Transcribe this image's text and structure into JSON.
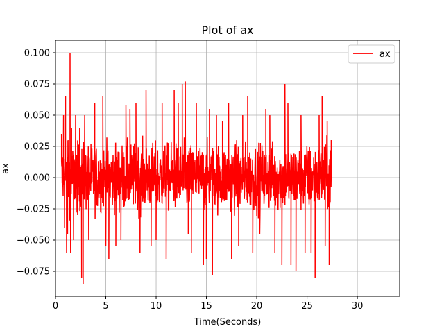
{
  "chart_data": {
    "type": "line",
    "title": "Plot of ax",
    "xlabel": "Time(Seconds)",
    "ylabel": "ax",
    "xlim": [
      0,
      34.2
    ],
    "ylim": [
      -0.095,
      0.11
    ],
    "xticks": [
      0,
      5,
      10,
      15,
      20,
      25,
      30
    ],
    "xtick_labels": [
      "0",
      "5",
      "10",
      "15",
      "20",
      "25",
      "30"
    ],
    "yticks": [
      -0.075,
      -0.05,
      -0.025,
      0.0,
      0.025,
      0.05,
      0.075,
      0.1
    ],
    "ytick_labels": [
      "−0.075",
      "−0.050",
      "−0.025",
      "0.000",
      "0.025",
      "0.050",
      "0.075",
      "0.100"
    ],
    "grid": true,
    "legend_position": "top-right",
    "series": [
      {
        "name": "ax",
        "color": "#ff0000",
        "x_start": 0.6,
        "x_end": 27.4,
        "mean": 0.0,
        "typical_range": [
          -0.05,
          0.05
        ],
        "points": [
          [
            0.6,
            0.035
          ],
          [
            0.7,
            -0.005
          ],
          [
            0.8,
            0.05
          ],
          [
            0.9,
            -0.04
          ],
          [
            1.0,
            0.065
          ],
          [
            1.1,
            -0.06
          ],
          [
            1.2,
            -0.045
          ],
          [
            1.3,
            0.03
          ],
          [
            1.45,
            0.1
          ],
          [
            1.5,
            -0.06
          ],
          [
            1.6,
            0.04
          ],
          [
            1.8,
            -0.05
          ],
          [
            2.0,
            0.05
          ],
          [
            2.2,
            -0.03
          ],
          [
            2.4,
            0.04
          ],
          [
            2.6,
            -0.08
          ],
          [
            2.75,
            -0.085
          ],
          [
            2.9,
            0.05
          ],
          [
            3.3,
            -0.05
          ],
          [
            3.9,
            0.06
          ],
          [
            4.7,
            0.065
          ],
          [
            5.0,
            -0.055
          ],
          [
            5.3,
            -0.065
          ],
          [
            6.0,
            -0.055
          ],
          [
            6.5,
            -0.05
          ],
          [
            7.0,
            0.058
          ],
          [
            7.4,
            0.055
          ],
          [
            8.0,
            0.06
          ],
          [
            8.4,
            -0.06
          ],
          [
            9.0,
            0.07
          ],
          [
            9.5,
            -0.055
          ],
          [
            10.0,
            -0.05
          ],
          [
            10.6,
            0.06
          ],
          [
            11.0,
            -0.065
          ],
          [
            11.8,
            0.07
          ],
          [
            12.2,
            0.06
          ],
          [
            12.6,
            0.075
          ],
          [
            12.9,
            0.077
          ],
          [
            13.2,
            -0.045
          ],
          [
            13.5,
            -0.06
          ],
          [
            14.0,
            0.06
          ],
          [
            14.7,
            -0.07
          ],
          [
            15.0,
            -0.065
          ],
          [
            15.3,
            0.055
          ],
          [
            15.6,
            -0.078
          ],
          [
            16.0,
            0.05
          ],
          [
            16.6,
            0.045
          ],
          [
            17.2,
            0.06
          ],
          [
            17.5,
            -0.065
          ],
          [
            18.2,
            -0.055
          ],
          [
            18.6,
            0.05
          ],
          [
            19.1,
            0.065
          ],
          [
            19.6,
            -0.06
          ],
          [
            20.3,
            -0.045
          ],
          [
            20.9,
            0.055
          ],
          [
            21.3,
            0.05
          ],
          [
            21.8,
            -0.06
          ],
          [
            22.5,
            -0.07
          ],
          [
            22.8,
            0.075
          ],
          [
            23.1,
            0.06
          ],
          [
            23.4,
            -0.07
          ],
          [
            23.9,
            -0.075
          ],
          [
            24.4,
            0.05
          ],
          [
            24.8,
            -0.06
          ],
          [
            25.4,
            -0.06
          ],
          [
            25.8,
            -0.08
          ],
          [
            26.2,
            0.05
          ],
          [
            26.5,
            0.065
          ],
          [
            26.8,
            -0.055
          ],
          [
            27.0,
            0.045
          ],
          [
            27.2,
            -0.07
          ],
          [
            27.4,
            0.03
          ]
        ]
      }
    ]
  }
}
